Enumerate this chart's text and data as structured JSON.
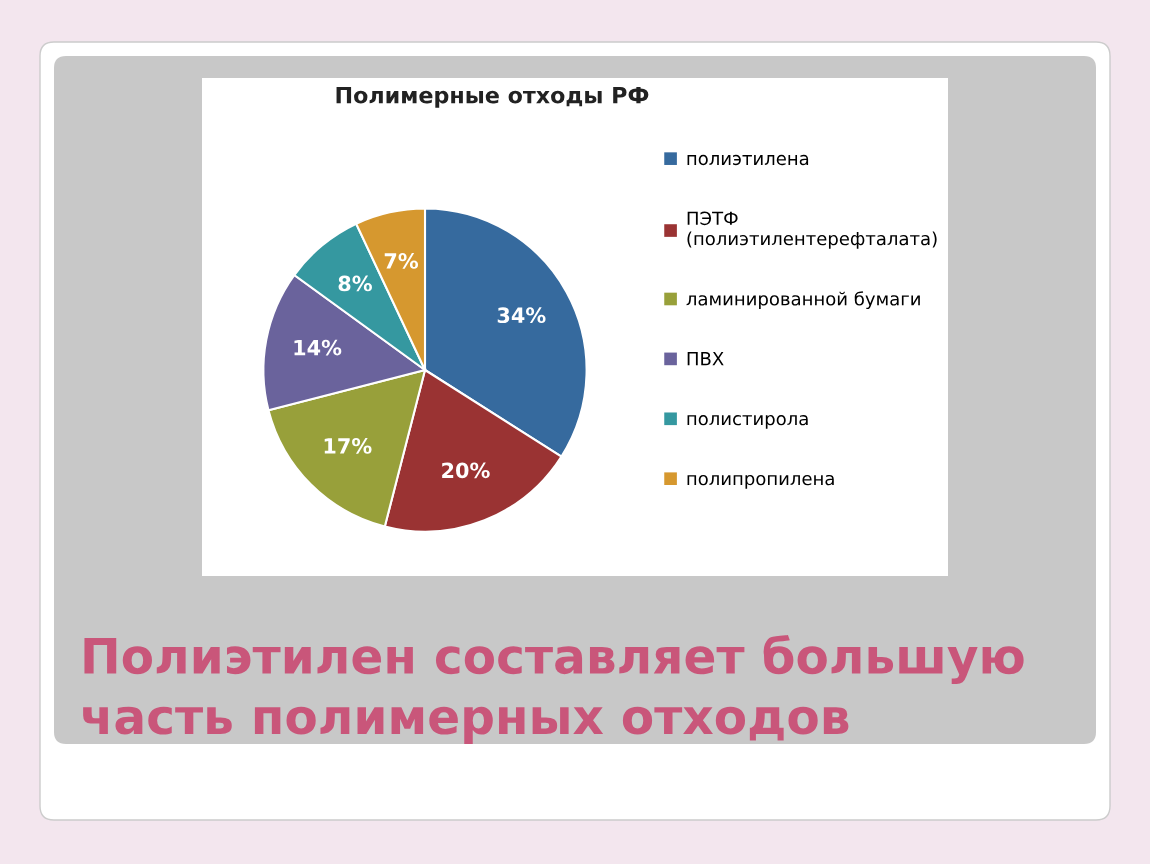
{
  "chart_data": {
    "type": "pie",
    "title": "Полимерные отходы РФ",
    "categories": [
      "полиэтилена",
      "ПЭТФ\n(полиэтилентерефталата)",
      "ламинированной бумаги",
      "ПВХ",
      "полистирола",
      "полипропилена"
    ],
    "values": [
      34,
      20,
      17,
      14,
      8,
      7
    ],
    "colors": [
      "#366a9e",
      "#9a3333",
      "#98a03a",
      "#6a639c",
      "#3598a0",
      "#d6982f"
    ],
    "value_labels": [
      "34%",
      "20%",
      "17%",
      "14%",
      "8%",
      "7%"
    ],
    "legend": "right",
    "annotations": [
      "Полиэтилен составляет большую часть полимерных отходов"
    ]
  }
}
